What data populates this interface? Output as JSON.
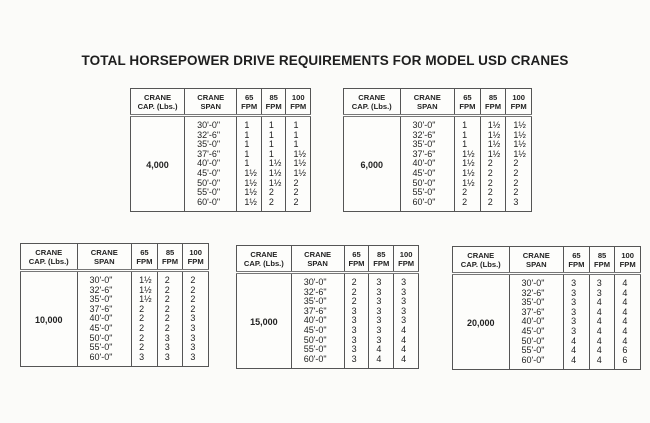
{
  "title": "TOTAL HORSEPOWER DRIVE REQUIREMENTS FOR MODEL USD CRANES",
  "headers": [
    "CRANE\nCAP. (Lbs.)",
    "CRANE\nSPAN",
    "65\nFPM",
    "85\nFPM",
    "100\nFPM"
  ],
  "spans": [
    "30'-0\"",
    "32'-6\"",
    "35'-0\"",
    "37'-6\"",
    "40'-0\"",
    "45'-0\"",
    "50'-0\"",
    "55'-0\"",
    "60'-0\""
  ],
  "tables": [
    {
      "capacity": "4,000",
      "fpm65": [
        "1",
        "1",
        "1",
        "1",
        "1",
        "1½",
        "1½",
        "1½",
        "1½"
      ],
      "fpm85": [
        "1",
        "1",
        "1",
        "1",
        "1½",
        "1½",
        "1½",
        "2",
        "2"
      ],
      "fpm100": [
        "1",
        "1",
        "1",
        "1½",
        "1½",
        "1½",
        "2",
        "2",
        "2"
      ]
    },
    {
      "capacity": "6,000",
      "fpm65": [
        "1",
        "1",
        "1",
        "1½",
        "1½",
        "1½",
        "1½",
        "2",
        "2"
      ],
      "fpm85": [
        "1½",
        "1½",
        "1½",
        "1½",
        "2",
        "2",
        "2",
        "2",
        "2"
      ],
      "fpm100": [
        "1½",
        "1½",
        "1½",
        "1½",
        "2",
        "2",
        "2",
        "2",
        "3"
      ]
    },
    {
      "capacity": "10,000",
      "fpm65": [
        "1½",
        "1½",
        "1½",
        "2",
        "2",
        "2",
        "2",
        "2",
        "3"
      ],
      "fpm85": [
        "2",
        "2",
        "2",
        "2",
        "2",
        "2",
        "3",
        "3",
        "3"
      ],
      "fpm100": [
        "2",
        "2",
        "2",
        "2",
        "3",
        "3",
        "3",
        "3",
        "3"
      ]
    },
    {
      "capacity": "15,000",
      "fpm65": [
        "2",
        "2",
        "2",
        "3",
        "3",
        "3",
        "3",
        "3",
        "3"
      ],
      "fpm85": [
        "3",
        "3",
        "3",
        "3",
        "3",
        "3",
        "3",
        "4",
        "4"
      ],
      "fpm100": [
        "3",
        "3",
        "3",
        "3",
        "3",
        "4",
        "4",
        "4",
        "4"
      ]
    },
    {
      "capacity": "20,000",
      "fpm65": [
        "3",
        "3",
        "3",
        "3",
        "3",
        "3",
        "4",
        "4",
        "4"
      ],
      "fpm85": [
        "3",
        "3",
        "4",
        "4",
        "4",
        "4",
        "4",
        "4",
        "4"
      ],
      "fpm100": [
        "4",
        "4",
        "4",
        "4",
        "4",
        "4",
        "4",
        "6",
        "6"
      ]
    }
  ]
}
